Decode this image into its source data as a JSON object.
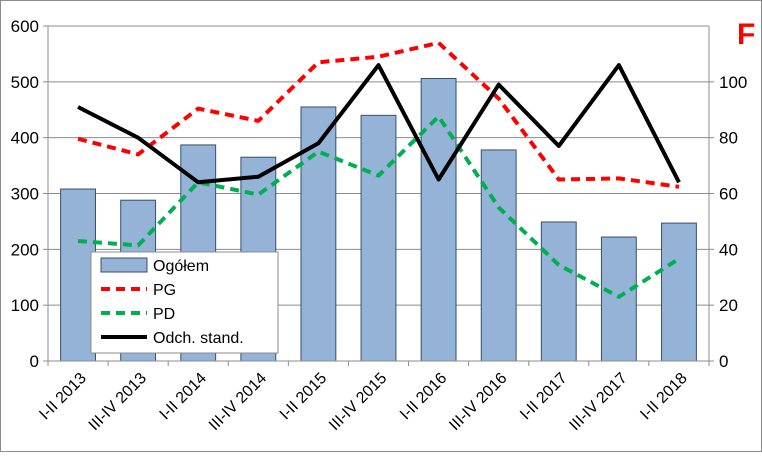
{
  "corner_label": "F",
  "chart_data": {
    "type": "bar",
    "categories": [
      "I-II 2013",
      "III-IV 2013",
      "I-II 2014",
      "III-IV 2014",
      "I-II 2015",
      "III-IV 2015",
      "I-II 2016",
      "III-IV 2016",
      "I-II 2017",
      "III-IV 2017",
      "I-II 2018"
    ],
    "ylim": [
      0,
      600
    ],
    "yticks": [
      0,
      100,
      200,
      300,
      400,
      500,
      600
    ],
    "y2lim": [
      0,
      120
    ],
    "y2ticks": [
      0,
      20,
      40,
      60,
      80,
      100
    ],
    "grid": true,
    "legend_position": "bottom-left",
    "series": [
      {
        "name": "Ogółem",
        "type": "bar",
        "axis": "left",
        "color": "#95b3d7",
        "values": [
          308,
          288,
          387,
          365,
          455,
          440,
          506,
          378,
          249,
          222,
          247
        ]
      },
      {
        "name": "PG",
        "type": "line",
        "axis": "left",
        "color": "#ff0000",
        "dash": "dashed",
        "values": [
          398,
          370,
          452,
          430,
          535,
          545,
          570,
          470,
          325,
          327,
          312
        ]
      },
      {
        "name": "PD",
        "type": "line",
        "axis": "left",
        "color": "#00b050",
        "dash": "dashed",
        "values": [
          215,
          207,
          320,
          298,
          375,
          332,
          438,
          275,
          172,
          115,
          183
        ]
      },
      {
        "name": "Odch. stand.",
        "type": "line",
        "axis": "right",
        "color": "#000000",
        "dash": "solid",
        "values": [
          91,
          80,
          64,
          66,
          78,
          106,
          65,
          99,
          77,
          106,
          64
        ]
      }
    ]
  }
}
